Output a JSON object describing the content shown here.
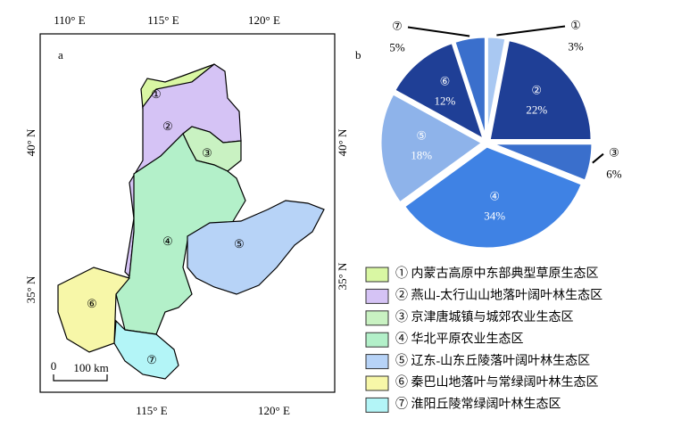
{
  "map": {
    "label": "a",
    "top_ticks": [
      "110° E",
      "115° E",
      "120° E"
    ],
    "bottom_ticks": [
      "115° E",
      "120° E"
    ],
    "left_ticks": [
      "40° N",
      "35° N"
    ],
    "right_ticks": [
      "40° N",
      "35° N"
    ],
    "scale_bar": {
      "start": "0",
      "end": "100 km"
    },
    "regions": [
      {
        "number": "①",
        "name": "① 内蒙古高原中东部典型草原生态区",
        "color": "#d9f7a3"
      },
      {
        "number": "②",
        "name": "② 燕山-太行山山地落叶阔叶林生态区",
        "color": "#d5c3f5"
      },
      {
        "number": "③",
        "name": "③ 京津唐城镇与城郊农业生态区",
        "color": "#c9f2c2"
      },
      {
        "number": "④",
        "name": "④ 华北平原农业生态区",
        "color": "#b3f0c9"
      },
      {
        "number": "⑤",
        "name": "⑤ 辽东-山东丘陵落叶阔叶林生态区",
        "color": "#b7d3f7"
      },
      {
        "number": "⑥",
        "name": "⑥ 秦巴山地落叶与常绿阔叶林生态区",
        "color": "#f7f7a8"
      },
      {
        "number": "⑦",
        "name": "⑦ 淮阳丘陵常绿阔叶林生态区",
        "color": "#b3f5f7"
      }
    ]
  },
  "chart_data": {
    "type": "pie",
    "label": "b",
    "categories": [
      "①",
      "②",
      "③",
      "④",
      "⑤",
      "⑥",
      "⑦"
    ],
    "values": [
      3,
      22,
      6,
      34,
      18,
      12,
      5
    ],
    "value_labels": [
      "3%",
      "22%",
      "6%",
      "34%",
      "18%",
      "12%",
      "5%"
    ],
    "colors": [
      "#a9c8f2",
      "#1f3f96",
      "#3a6fcc",
      "#3f82e4",
      "#8eb3ea",
      "#1f3f96",
      "#3a6fcc"
    ]
  }
}
